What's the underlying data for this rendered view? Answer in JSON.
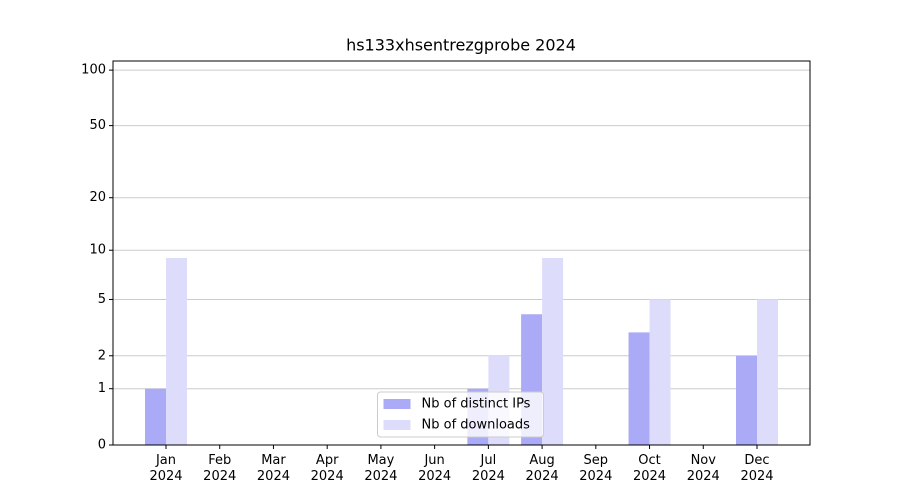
{
  "chart_data": {
    "type": "bar",
    "title": "hs133xhsentrezgprobe 2024",
    "categories": [
      "Jan\n2024",
      "Feb\n2024",
      "Mar\n2024",
      "Apr\n2024",
      "May\n2024",
      "Jun\n2024",
      "Jul\n2024",
      "Aug\n2024",
      "Sep\n2024",
      "Oct\n2024",
      "Nov\n2024",
      "Dec\n2024"
    ],
    "series": [
      {
        "name": "Nb of distinct IPs",
        "color": "#aaaaf6",
        "values": [
          1,
          0,
          0,
          0,
          0,
          0,
          1,
          4,
          0,
          3,
          0,
          2
        ]
      },
      {
        "name": "Nb of downloads",
        "color": "#ddddfb",
        "values": [
          9,
          0,
          0,
          0,
          0,
          0,
          2,
          9,
          0,
          5,
          0,
          5
        ]
      }
    ],
    "yscale": "log1p",
    "ylim": [
      0,
      112
    ],
    "yticks": [
      0,
      1,
      2,
      5,
      10,
      20,
      50,
      100
    ],
    "grid": true,
    "legend": "lower center"
  }
}
